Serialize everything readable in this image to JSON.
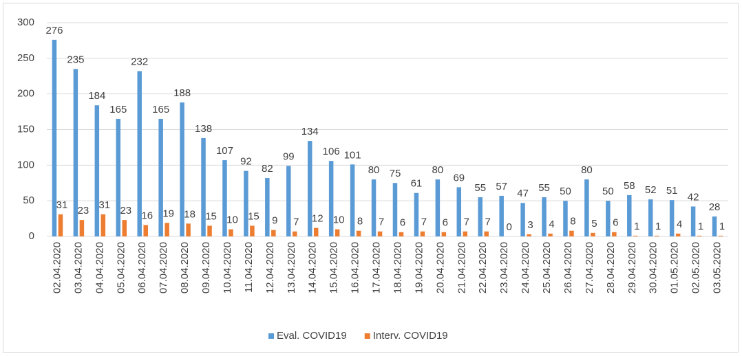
{
  "chart_data": {
    "type": "bar",
    "categories": [
      "02.04.2020",
      "03.04.2020",
      "04.04.2020",
      "05.04.2020",
      "06.04.2020",
      "07.04.2020",
      "08.04.2020",
      "09.04.2020",
      "10.04.2020",
      "11.04.2020",
      "12.04.2020",
      "13.04.2020",
      "14.04.2020",
      "15.04.2020",
      "16.04.2020",
      "17.04.2020",
      "18.04.2020",
      "19.04.2020",
      "20.04.2020",
      "21.04.2020",
      "22.04.2020",
      "23.04.2020",
      "24.04.2020",
      "25.04.2020",
      "26.04.2020",
      "27.04.2020",
      "28.04.2020",
      "29.04.2020",
      "30.04.2020",
      "01.05.2020",
      "02.05.2020",
      "03.05.2020"
    ],
    "series": [
      {
        "name": "Eval. COVID19",
        "color": "#5b9bd5",
        "values": [
          276,
          235,
          184,
          165,
          232,
          165,
          188,
          138,
          107,
          92,
          82,
          99,
          134,
          106,
          101,
          80,
          75,
          61,
          80,
          69,
          55,
          57,
          47,
          55,
          50,
          80,
          50,
          58,
          52,
          51,
          42,
          28
        ]
      },
      {
        "name": "Interv. COVID19",
        "color": "#ed7d31",
        "values": [
          31,
          23,
          31,
          23,
          16,
          19,
          18,
          15,
          10,
          15,
          9,
          7,
          12,
          10,
          8,
          7,
          6,
          7,
          6,
          7,
          7,
          0,
          3,
          4,
          8,
          5,
          6,
          1,
          1,
          4,
          1,
          1
        ]
      }
    ],
    "ylim": [
      0,
      300
    ],
    "yticks": [
      0,
      50,
      100,
      150,
      200,
      250,
      300
    ],
    "grid": true,
    "legend": "bottom"
  }
}
